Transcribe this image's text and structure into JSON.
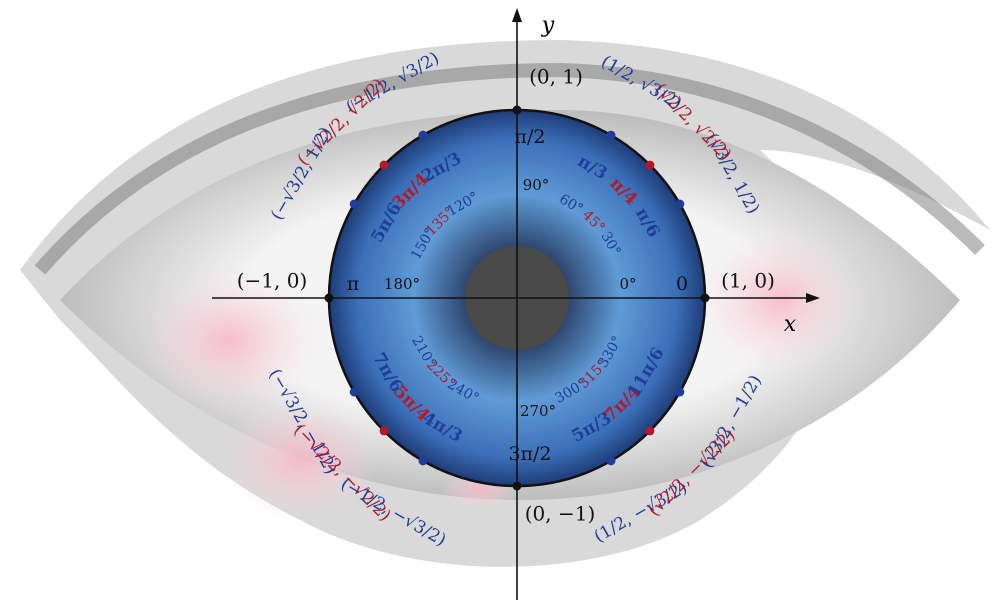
{
  "axes": {
    "x": "x",
    "y": "y"
  },
  "points": [
    {
      "radians": "0",
      "degrees": "0°",
      "coordinates": "(1, 0)",
      "color": "#111111"
    },
    {
      "radians": "π/6",
      "degrees": "30°",
      "coordinates": "(√3/2, 1/2)",
      "color": "#1f3d99"
    },
    {
      "radians": "π/4",
      "degrees": "45°",
      "coordinates": "(√2/2, √2/2)",
      "color": "#b3192b"
    },
    {
      "radians": "π/3",
      "degrees": "60°",
      "coordinates": "(1/2, √3/2)",
      "color": "#1f3d99"
    },
    {
      "radians": "π/2",
      "degrees": "90°",
      "coordinates": "(0, 1)",
      "color": "#111111"
    },
    {
      "radians": "2π/3",
      "degrees": "120°",
      "coordinates": "(−1/2, √3/2)",
      "color": "#1f3d99"
    },
    {
      "radians": "3π/4",
      "degrees": "135°",
      "coordinates": "(−√2/2, √2/2)",
      "color": "#b3192b"
    },
    {
      "radians": "5π/6",
      "degrees": "150°",
      "coordinates": "(−√3/2, 1/2)",
      "color": "#1f3d99"
    },
    {
      "radians": "π",
      "degrees": "180°",
      "coordinates": "(−1, 0)",
      "color": "#111111"
    },
    {
      "radians": "7π/6",
      "degrees": "210°",
      "coordinates": "(−√3/2, −1/2)",
      "color": "#1f3d99"
    },
    {
      "radians": "5π/4",
      "degrees": "225°",
      "coordinates": "(−√2/2, −√2/2)",
      "color": "#b3192b"
    },
    {
      "radians": "4π/3",
      "degrees": "240°",
      "coordinates": "(−1/2, −√3/2)",
      "color": "#1f3d99"
    },
    {
      "radians": "3π/2",
      "degrees": "270°",
      "coordinates": "(0, −1)",
      "color": "#111111"
    },
    {
      "radians": "5π/3",
      "degrees": "300°",
      "coordinates": "(1/2, −√3/2)",
      "color": "#1f3d99"
    },
    {
      "radians": "7π/4",
      "degrees": "315°",
      "coordinates": "(√2/2, −√2/2)",
      "color": "#b3192b"
    },
    {
      "radians": "11π/6",
      "degrees": "330°",
      "coordinates": "(√3/2, −1/2)",
      "color": "#1f3d99"
    }
  ]
}
